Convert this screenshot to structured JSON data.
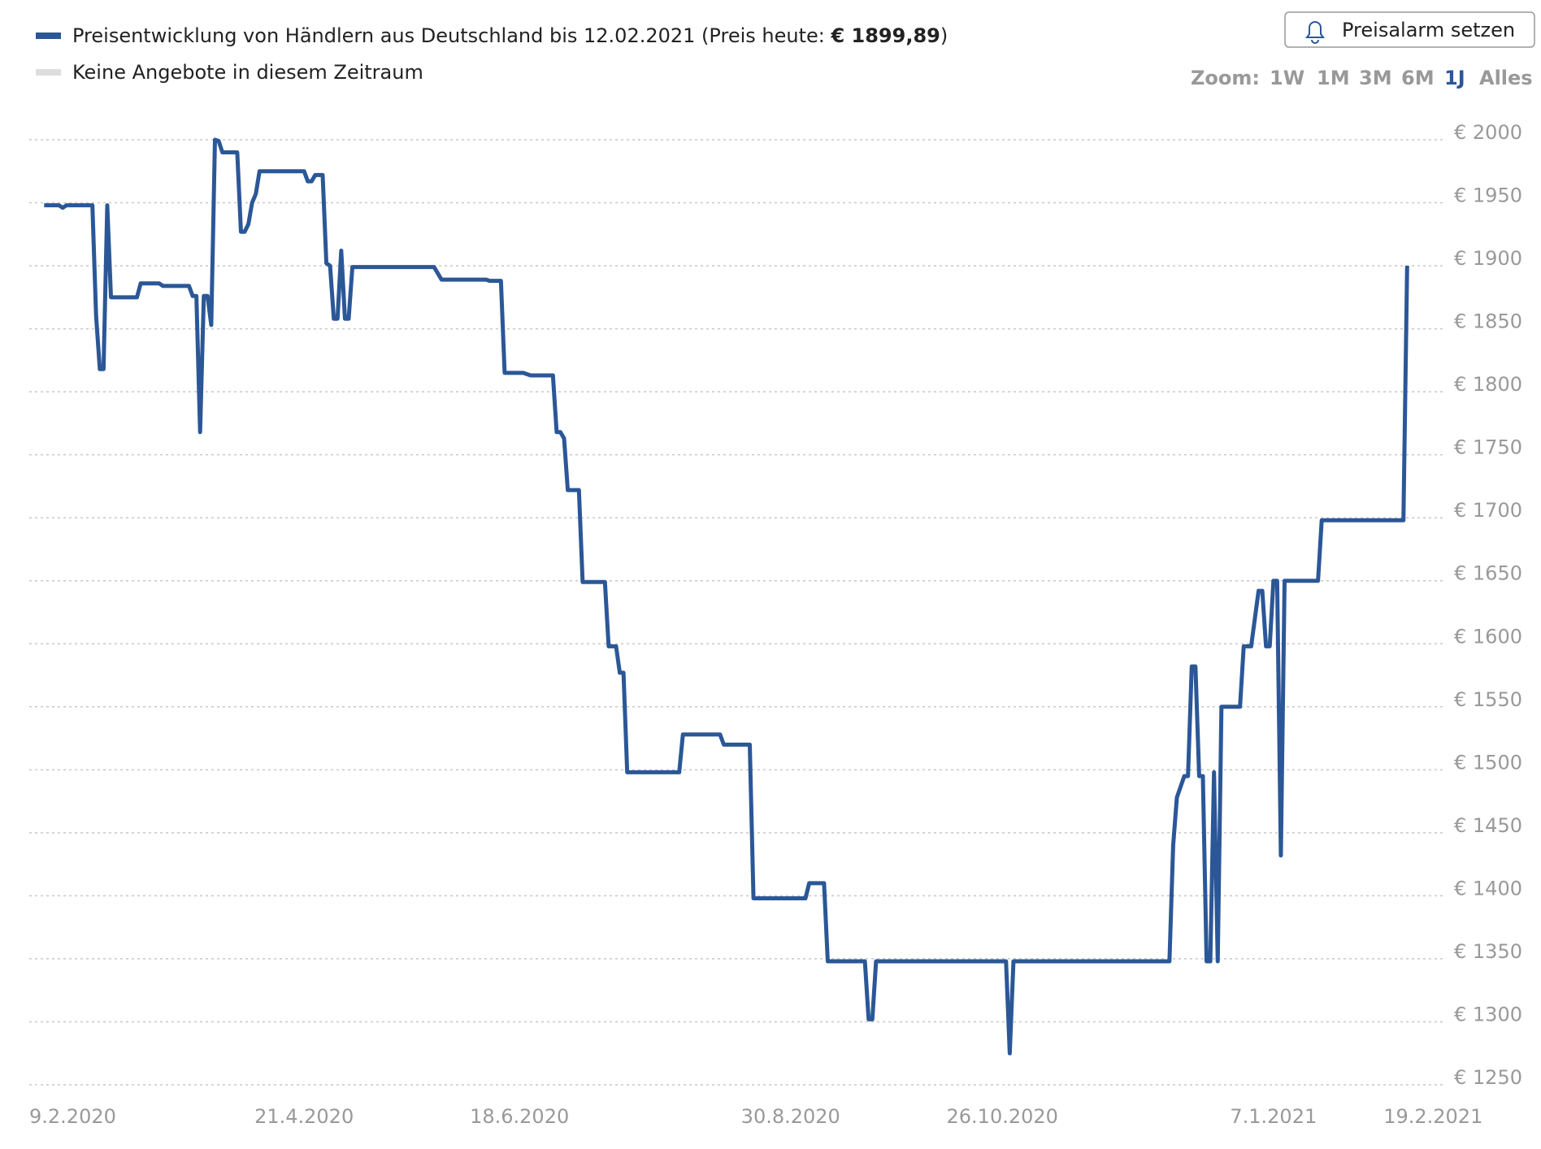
{
  "chart_data": {
    "type": "line",
    "grid": true,
    "x": [
      "2020-02-11",
      "2020-02-15",
      "2020-02-16",
      "2020-02-17",
      "2020-02-24",
      "2020-02-25",
      "2020-02-26",
      "2020-02-27",
      "2020-02-28",
      "2020-02-29",
      "2020-03-07",
      "2020-03-08",
      "2020-03-13",
      "2020-03-14",
      "2020-03-21",
      "2020-03-22",
      "2020-03-23",
      "2020-03-24",
      "2020-03-25",
      "2020-03-26",
      "2020-03-27",
      "2020-03-28",
      "2020-03-29",
      "2020-03-30",
      "2020-04-03",
      "2020-04-04",
      "2020-04-05",
      "2020-04-06",
      "2020-04-07",
      "2020-04-08",
      "2020-04-09",
      "2020-04-21",
      "2020-04-22",
      "2020-04-23",
      "2020-04-24",
      "2020-04-26",
      "2020-04-27",
      "2020-04-28",
      "2020-04-29",
      "2020-04-30",
      "2020-05-01",
      "2020-05-02",
      "2020-05-03",
      "2020-05-04",
      "2020-05-26",
      "2020-05-28",
      "2020-06-09",
      "2020-06-10",
      "2020-06-13",
      "2020-06-14",
      "2020-06-19",
      "2020-06-21",
      "2020-06-27",
      "2020-06-28",
      "2020-06-29",
      "2020-06-30",
      "2020-07-01",
      "2020-07-04",
      "2020-07-05",
      "2020-07-11",
      "2020-07-12",
      "2020-07-14",
      "2020-07-15",
      "2020-07-16",
      "2020-07-17",
      "2020-07-31",
      "2020-08-01",
      "2020-08-11",
      "2020-08-12",
      "2020-08-19",
      "2020-08-20",
      "2020-09-03",
      "2020-09-04",
      "2020-09-08",
      "2020-09-09",
      "2020-09-19",
      "2020-09-20",
      "2020-09-21",
      "2020-09-22",
      "2020-10-27",
      "2020-10-28",
      "2020-10-29",
      "2020-12-10",
      "2020-12-11",
      "2020-12-12",
      "2020-12-14",
      "2020-12-15",
      "2020-12-16",
      "2020-12-17",
      "2020-12-18",
      "2020-12-19",
      "2020-12-20",
      "2020-12-21",
      "2020-12-22",
      "2020-12-23",
      "2020-12-24",
      "2020-12-29",
      "2020-12-30",
      "2021-01-01",
      "2021-01-03",
      "2021-01-04",
      "2021-01-05",
      "2021-01-06",
      "2021-01-07",
      "2021-01-08",
      "2021-01-09",
      "2021-01-10",
      "2021-01-19",
      "2021-01-20",
      "2021-02-11",
      "2021-02-12"
    ],
    "series": [
      {
        "name": "Preisentwicklung von Händlern aus Deutschland bis 12.02.2021 (Preis heute: ",
        "price_today": "€ 1899,89",
        "name_end": ")",
        "color": "#2b5797",
        "values": [
          1948,
          1948,
          1946,
          1948,
          1948,
          1860,
          1818,
          1818,
          1948,
          1875,
          1875,
          1886,
          1886,
          1884,
          1884,
          1876,
          1876,
          1768,
          1876,
          1876,
          1853,
          2000,
          1999,
          1990,
          1990,
          1927,
          1927,
          1933,
          1950,
          1957,
          1975,
          1975,
          1967,
          1967,
          1972,
          1972,
          1902,
          1900,
          1858,
          1858,
          1912,
          1858,
          1858,
          1899,
          1899,
          1889,
          1889,
          1888,
          1888,
          1815,
          1815,
          1813,
          1813,
          1768,
          1768,
          1763,
          1722,
          1722,
          1649,
          1649,
          1598,
          1598,
          1577,
          1577,
          1498,
          1498,
          1528,
          1528,
          1520,
          1520,
          1398,
          1398,
          1410,
          1410,
          1348,
          1348,
          1302,
          1302,
          1348,
          1348,
          1275,
          1348,
          1348,
          1440,
          1478,
          1495,
          1495,
          1582,
          1582,
          1495,
          1495,
          1348,
          1348,
          1498,
          1348,
          1550,
          1550,
          1598,
          1598,
          1642,
          1642,
          1598,
          1598,
          1650,
          1650,
          1432,
          1650,
          1650,
          1698,
          1698,
          1900
        ]
      }
    ],
    "no_offer": {
      "name": "Keine Angebote in diesem Zeitraum",
      "color": "#dddddd"
    },
    "xlim": [
      "2020-02-07",
      "2021-02-22"
    ],
    "xticks": [
      {
        "value": "2020-02-09",
        "label": "9.2.2020"
      },
      {
        "value": "2020-04-21",
        "label": "21.4.2020"
      },
      {
        "value": "2020-06-18",
        "label": "18.6.2020"
      },
      {
        "value": "2020-08-30",
        "label": "30.8.2020"
      },
      {
        "value": "2020-10-26",
        "label": "26.10.2020"
      },
      {
        "value": "2021-01-07",
        "label": "7.1.2021"
      },
      {
        "value": "2021-02-19",
        "label": "19.2.2021"
      }
    ],
    "ylim": [
      1250,
      2000
    ],
    "yticks": [
      {
        "value": 1250,
        "label": "€ 1250"
      },
      {
        "value": 1300,
        "label": "€ 1300"
      },
      {
        "value": 1350,
        "label": "€ 1350"
      },
      {
        "value": 1400,
        "label": "€ 1400"
      },
      {
        "value": 1450,
        "label": "€ 1450"
      },
      {
        "value": 1500,
        "label": "€ 1500"
      },
      {
        "value": 1550,
        "label": "€ 1550"
      },
      {
        "value": 1600,
        "label": "€ 1600"
      },
      {
        "value": 1650,
        "label": "€ 1650"
      },
      {
        "value": 1700,
        "label": "€ 1700"
      },
      {
        "value": 1750,
        "label": "€ 1750"
      },
      {
        "value": 1800,
        "label": "€ 1800"
      },
      {
        "value": 1850,
        "label": "€ 1850"
      },
      {
        "value": 1900,
        "label": "€ 1900"
      },
      {
        "value": 1950,
        "label": "€ 1950"
      },
      {
        "value": 2000,
        "label": "€ 2000"
      }
    ],
    "controls": {
      "alarm_button": "Preisalarm setzen",
      "zoom_label": "Zoom:",
      "zoom_options": [
        "1W",
        "1M",
        "3M",
        "6M",
        "1J",
        "Alles"
      ],
      "zoom_active": "1J"
    }
  }
}
